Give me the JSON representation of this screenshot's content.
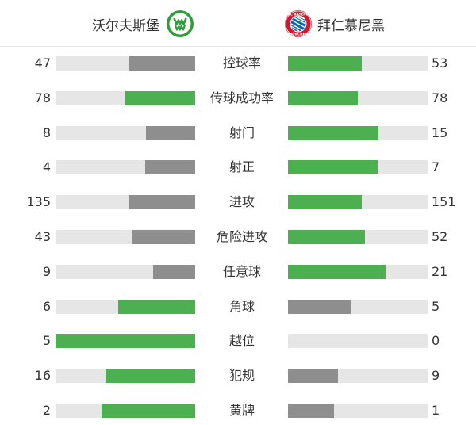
{
  "home": {
    "name": "沃尔夫斯堡",
    "logo": "vfl-wolfsburg-logo"
  },
  "away": {
    "name": "拜仁慕尼黑",
    "logo": "fc-bayern-munchen-logo",
    "logo_text_top": "FC BAYERN",
    "logo_text_bottom": "MÜNCHEN"
  },
  "colors": {
    "leader": "#4caf50",
    "trailer": "#8e8e8e",
    "track": "#e6e6e6"
  },
  "stats": [
    {
      "label": "控球率",
      "home": "47",
      "away": "53",
      "home_share": 0.47,
      "away_share": 0.53,
      "leader": "away"
    },
    {
      "label": "传球成功率",
      "home": "78",
      "away": "78",
      "home_share": 0.5,
      "away_share": 0.5,
      "leader": "both"
    },
    {
      "label": "射门",
      "home": "8",
      "away": "15",
      "home_share": 0.35,
      "away_share": 0.65,
      "leader": "away"
    },
    {
      "label": "射正",
      "home": "4",
      "away": "7",
      "home_share": 0.36,
      "away_share": 0.64,
      "leader": "away"
    },
    {
      "label": "进攻",
      "home": "135",
      "away": "151",
      "home_share": 0.47,
      "away_share": 0.53,
      "leader": "away"
    },
    {
      "label": "危险进攻",
      "home": "43",
      "away": "52",
      "home_share": 0.45,
      "away_share": 0.55,
      "leader": "away"
    },
    {
      "label": "任意球",
      "home": "9",
      "away": "21",
      "home_share": 0.3,
      "away_share": 0.7,
      "leader": "away"
    },
    {
      "label": "角球",
      "home": "6",
      "away": "5",
      "home_share": 0.55,
      "away_share": 0.45,
      "leader": "home"
    },
    {
      "label": "越位",
      "home": "5",
      "away": "0",
      "home_share": 1.0,
      "away_share": 0.0,
      "leader": "home"
    },
    {
      "label": "犯规",
      "home": "16",
      "away": "9",
      "home_share": 0.64,
      "away_share": 0.36,
      "leader": "home"
    },
    {
      "label": "黄牌",
      "home": "2",
      "away": "1",
      "home_share": 0.67,
      "away_share": 0.33,
      "leader": "home"
    }
  ]
}
